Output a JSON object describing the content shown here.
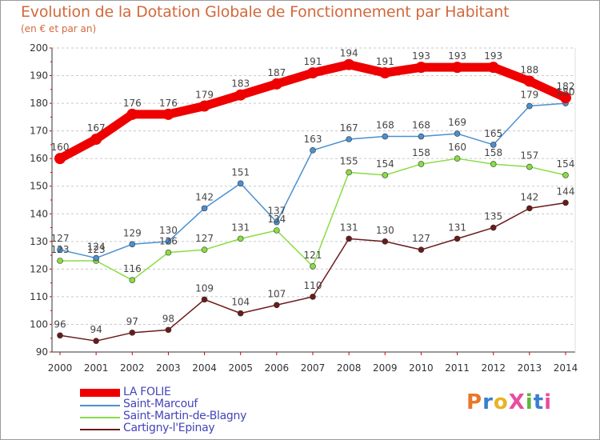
{
  "header": {
    "title": "Evolution de la Dotation Globale de Fonctionnement par Habitant",
    "subtitle": "(en € et par an)"
  },
  "colors": {
    "title": "#d2693c",
    "legend_text": "#4444bb",
    "axis": "#333333",
    "gridline": "#c8c8c8",
    "logo": [
      "#e8772a",
      "#3a7fd0",
      "#e8b325",
      "#e84ca0",
      "#5bb53f",
      "#3a7fd0",
      "#e84ca0"
    ]
  },
  "logo": {
    "text": "ProXiti",
    "letters": [
      "P",
      "r",
      "o",
      "X",
      "i",
      "t",
      "i"
    ]
  },
  "chart_data": {
    "type": "line",
    "x": [
      2000,
      2001,
      2002,
      2003,
      2004,
      2005,
      2006,
      2007,
      2008,
      2009,
      2010,
      2011,
      2012,
      2013,
      2014
    ],
    "ylim": [
      90,
      200
    ],
    "yticks": [
      90,
      100,
      110,
      120,
      130,
      140,
      150,
      160,
      170,
      180,
      190,
      200
    ],
    "grid": "horizontal dashed",
    "legend_position": "bottom-left",
    "series": [
      {
        "name": "LA FOLIE",
        "color": "#ee0000",
        "emphasis": true,
        "values": [
          160,
          167,
          176,
          176,
          179,
          183,
          187,
          191,
          194,
          191,
          193,
          193,
          193,
          188,
          182
        ]
      },
      {
        "name": "Saint-Marcouf",
        "color": "#4a90d0",
        "values": [
          127,
          124,
          129,
          130,
          142,
          151,
          137,
          163,
          167,
          168,
          168,
          169,
          165,
          179,
          180
        ]
      },
      {
        "name": "Saint-Martin-de-Blagny",
        "color": "#88dd44",
        "values": [
          123,
          123,
          116,
          126,
          127,
          131,
          134,
          121,
          155,
          154,
          158,
          160,
          158,
          157,
          154
        ]
      },
      {
        "name": "Cartigny-l'Epinay",
        "color": "#6b1a1a",
        "values": [
          96,
          94,
          97,
          98,
          109,
          104,
          107,
          110,
          131,
          130,
          127,
          131,
          135,
          142,
          144
        ]
      }
    ]
  }
}
